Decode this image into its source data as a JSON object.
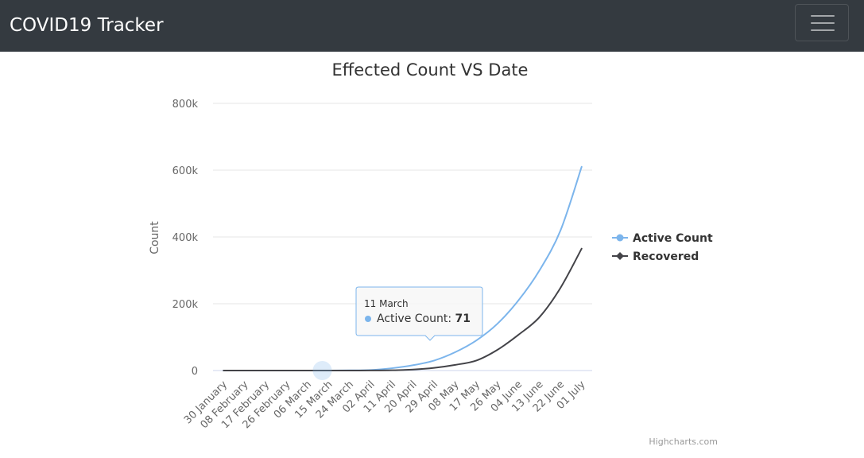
{
  "navbar": {
    "brand": "COVID19 Tracker",
    "toggler_icon": "hamburger-menu-icon",
    "background": "#343a40"
  },
  "chart_data": {
    "type": "line",
    "title": "Effected Count VS Date",
    "xlabel": "",
    "ylabel": "Count",
    "y_ticks": [
      "0",
      "200k",
      "400k",
      "600k",
      "800k"
    ],
    "ylim": [
      0,
      800000
    ],
    "x_tick_labels": [
      "30 January",
      "08 February",
      "17 February",
      "26 February",
      "06 March",
      "15 March",
      "24 March",
      "02 April",
      "11 April",
      "20 April",
      "29 April",
      "08 May",
      "17 May",
      "26 May",
      "04 June",
      "13 June",
      "22 June",
      "01 July"
    ],
    "x": [
      "30 January",
      "08 February",
      "17 February",
      "26 February",
      "06 March",
      "15 March",
      "24 March",
      "02 April",
      "11 April",
      "20 April",
      "29 April",
      "08 May",
      "17 May",
      "26 May",
      "04 June",
      "13 June",
      "22 June",
      "01 July"
    ],
    "grid": true,
    "legend_position": "right",
    "series": [
      {
        "name": "Active Count",
        "color": "#7cb5ec",
        "marker": "circle",
        "values": [
          3,
          3,
          3,
          3,
          30,
          100,
          500,
          1500,
          7000,
          16000,
          30000,
          55000,
          90000,
          140000,
          210000,
          300000,
          420000,
          610000
        ]
      },
      {
        "name": "Recovered",
        "color": "#434348",
        "marker": "diamond",
        "values": [
          0,
          0,
          0,
          0,
          3,
          10,
          40,
          150,
          800,
          3000,
          8000,
          17000,
          30000,
          62000,
          107000,
          160000,
          248000,
          365000
        ]
      }
    ],
    "tooltip": {
      "date": "11 March",
      "series_name": "Active Count",
      "separator": ": ",
      "value": "71"
    },
    "credits": "Highcharts.com"
  }
}
